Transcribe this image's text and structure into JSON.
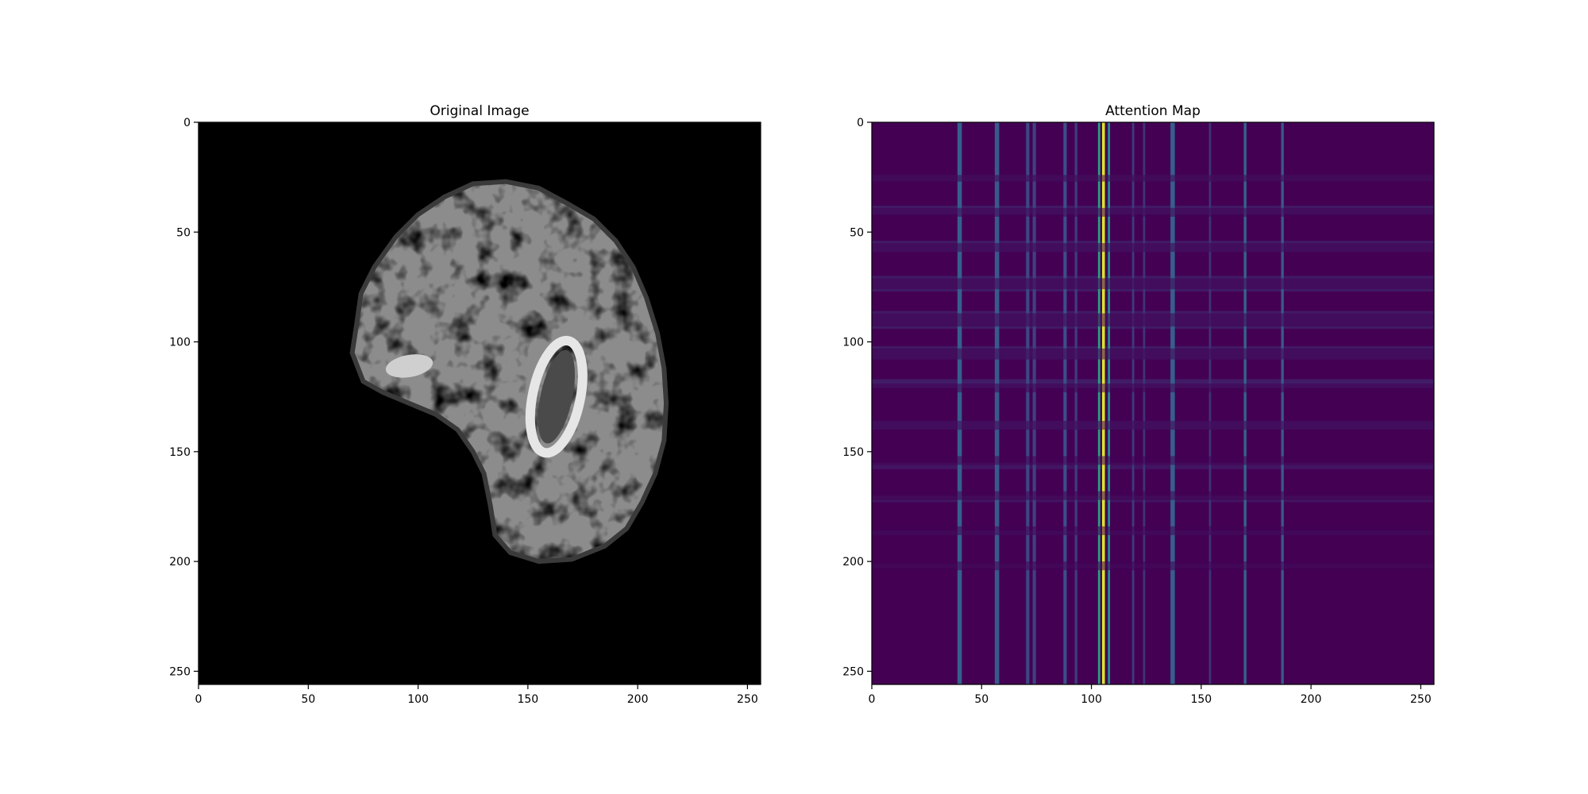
{
  "chart_data": [
    {
      "type": "heatmap",
      "title": "Original Image",
      "colormap": "gray",
      "xlim": [
        0,
        256
      ],
      "ylim": [
        256,
        0
      ],
      "xticks": [
        0,
        50,
        100,
        150,
        200,
        250
      ],
      "yticks": [
        0,
        50,
        100,
        150,
        200,
        250
      ],
      "xtick_labels": [
        "0",
        "50",
        "100",
        "150",
        "200",
        "250"
      ],
      "ytick_labels": [
        "0",
        "50",
        "100",
        "150",
        "200",
        "250"
      ],
      "grid": false,
      "content": "sagittal brain MRI slice",
      "outline": [
        [
          70,
          105
        ],
        [
          72,
          92
        ],
        [
          74,
          78
        ],
        [
          80,
          66
        ],
        [
          90,
          52
        ],
        [
          100,
          42
        ],
        [
          112,
          34
        ],
        [
          125,
          28
        ],
        [
          140,
          27
        ],
        [
          155,
          30
        ],
        [
          168,
          37
        ],
        [
          180,
          44
        ],
        [
          190,
          54
        ],
        [
          198,
          66
        ],
        [
          204,
          80
        ],
        [
          209,
          96
        ],
        [
          212,
          112
        ],
        [
          213,
          128
        ],
        [
          212,
          145
        ],
        [
          208,
          160
        ],
        [
          202,
          173
        ],
        [
          195,
          185
        ],
        [
          185,
          193
        ],
        [
          170,
          199
        ],
        [
          155,
          200
        ],
        [
          142,
          196
        ],
        [
          135,
          188
        ],
        [
          133,
          175
        ],
        [
          130,
          160
        ],
        [
          125,
          150
        ],
        [
          118,
          140
        ],
        [
          108,
          133
        ],
        [
          96,
          128
        ],
        [
          84,
          123
        ],
        [
          75,
          118
        ]
      ]
    },
    {
      "type": "heatmap",
      "title": "Attention Map",
      "colormap": "viridis",
      "xlim": [
        0,
        256
      ],
      "ylim": [
        256,
        0
      ],
      "xticks": [
        0,
        50,
        100,
        150,
        200,
        250
      ],
      "yticks": [
        0,
        50,
        100,
        150,
        200,
        250
      ],
      "xtick_labels": [
        "0",
        "50",
        "100",
        "150",
        "200",
        "250"
      ],
      "ytick_labels": [
        "0",
        "50",
        "100",
        "150",
        "200",
        "250"
      ],
      "grid": false,
      "background_value": 0.0,
      "column_stripes": [
        {
          "x": 40,
          "width": 2,
          "value": 0.3
        },
        {
          "x": 57,
          "width": 2,
          "value": 0.28
        },
        {
          "x": 71,
          "width": 1.5,
          "value": 0.22
        },
        {
          "x": 74,
          "width": 1.5,
          "value": 0.2
        },
        {
          "x": 88,
          "width": 1.5,
          "value": 0.24
        },
        {
          "x": 93,
          "width": 1.2,
          "value": 0.18
        },
        {
          "x": 103.5,
          "width": 1,
          "value": 0.55
        },
        {
          "x": 105.5,
          "width": 1.3,
          "value": 0.95
        },
        {
          "x": 108,
          "width": 1,
          "value": 0.5
        },
        {
          "x": 119,
          "width": 1,
          "value": 0.18
        },
        {
          "x": 124,
          "width": 1,
          "value": 0.16
        },
        {
          "x": 137,
          "width": 2,
          "value": 0.3
        },
        {
          "x": 154,
          "width": 1,
          "value": 0.15
        },
        {
          "x": 170,
          "width": 1.2,
          "value": 0.32
        },
        {
          "x": 187,
          "width": 1.2,
          "value": 0.28
        }
      ],
      "row_bands": [
        {
          "y": 24,
          "height": 3,
          "value": 0.06
        },
        {
          "y": 38,
          "height": 4,
          "value": 0.08
        },
        {
          "y": 54,
          "height": 5,
          "value": 0.08
        },
        {
          "y": 70,
          "height": 7,
          "value": 0.08
        },
        {
          "y": 86,
          "height": 8,
          "value": 0.08
        },
        {
          "y": 102,
          "height": 6,
          "value": 0.08
        },
        {
          "y": 117,
          "height": 4,
          "value": 0.08
        },
        {
          "y": 136,
          "height": 4,
          "value": 0.08
        },
        {
          "y": 155,
          "height": 3,
          "value": 0.06
        },
        {
          "y": 170,
          "height": 3,
          "value": 0.06
        },
        {
          "y": 186,
          "height": 2,
          "value": 0.05
        },
        {
          "y": 201,
          "height": 2,
          "value": 0.04
        }
      ],
      "row_gaps": [
        {
          "y": 24,
          "height": 3
        },
        {
          "y": 39,
          "height": 4
        },
        {
          "y": 55,
          "height": 4
        },
        {
          "y": 71,
          "height": 5
        },
        {
          "y": 87,
          "height": 6
        },
        {
          "y": 103,
          "height": 5
        },
        {
          "y": 119,
          "height": 4
        },
        {
          "y": 136,
          "height": 4
        },
        {
          "y": 152,
          "height": 4
        },
        {
          "y": 168,
          "height": 4
        },
        {
          "y": 184,
          "height": 4
        },
        {
          "y": 200,
          "height": 4
        }
      ]
    }
  ]
}
